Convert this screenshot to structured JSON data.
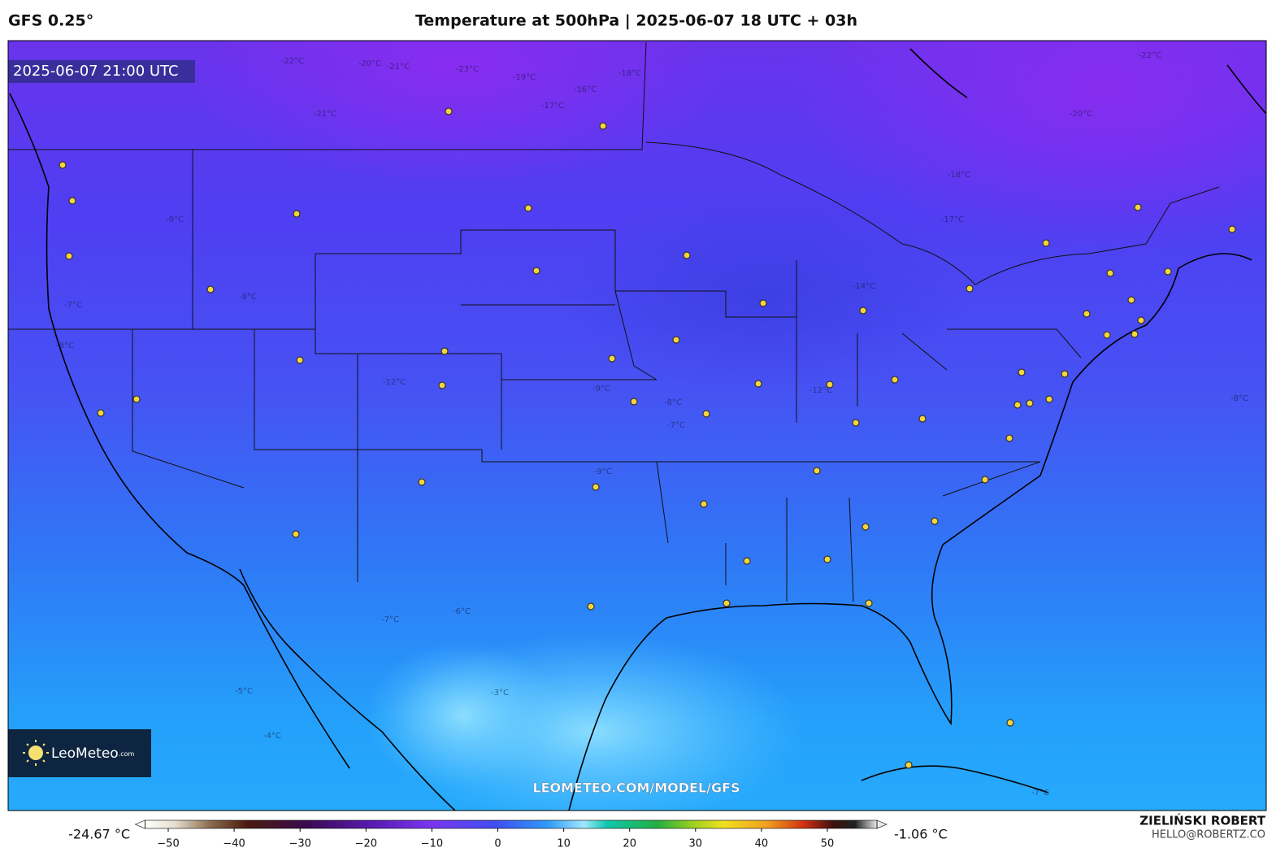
{
  "header": {
    "model": "GFS 0.25°",
    "title": "Temperature at 500hPa | 2025-06-07 18 UTC + 03h"
  },
  "map": {
    "timestamp": "2025-06-07 21:00 UTC",
    "watermark": "LEOMETEO.COM/MODEL/GFS",
    "logo": {
      "name": "LeoMeteo",
      "suffix": ".com"
    },
    "contour_labels": [
      "-22°C",
      "-20°C",
      "-21°C",
      "-23°C",
      "-19°C",
      "-18°C",
      "-17°C",
      "-16°C",
      "-21°C",
      "-22°C",
      "-20°C",
      "-18°C",
      "-17°C",
      "-14°C",
      "-12°C",
      "-9°C",
      "-8°C",
      "-7°C",
      "-8°C",
      "-12°C",
      "-9°C",
      "-8°C",
      "-7°C",
      "-9°C",
      "-6°C",
      "-7°C",
      "-5°C",
      "-4°C",
      "-3°C",
      "-8°C",
      "-7°C"
    ]
  },
  "colorbar": {
    "min_label": "-24.67 °C",
    "max_label": "-1.06 °C",
    "lim": [
      -55,
      59
    ],
    "ticks": [
      {
        "value": -50,
        "label": "−50"
      },
      {
        "value": -40,
        "label": "−40"
      },
      {
        "value": -30,
        "label": "−30"
      },
      {
        "value": -20,
        "label": "−20"
      },
      {
        "value": -10,
        "label": "−10"
      },
      0,
      10,
      20,
      30,
      40,
      50
    ]
  },
  "credit": {
    "author": "ZIELIŃSKI ROBERT",
    "email": "HELLO@ROBERTZ.CO"
  }
}
